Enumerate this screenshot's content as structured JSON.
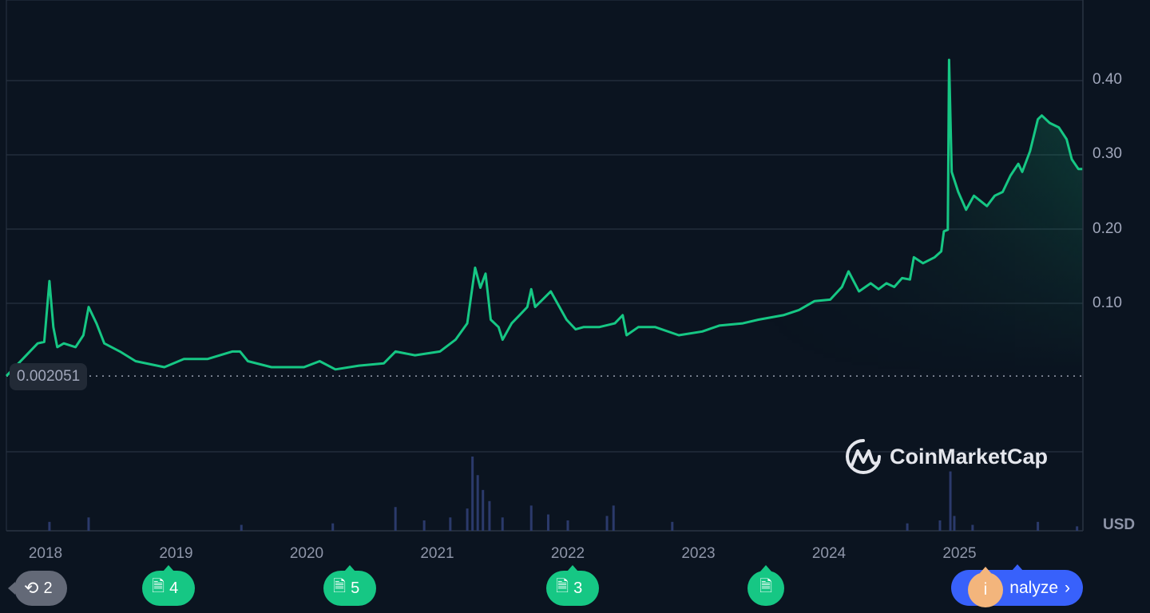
{
  "chart_data": {
    "type": "area",
    "x_unit": "year",
    "y_unit": "USD",
    "ylim": [
      0,
      0.45
    ],
    "grid": true,
    "yticks": [
      "0.40",
      "0.30",
      "0.20",
      "0.10"
    ],
    "ytick_values": [
      0.4,
      0.3,
      0.2,
      0.1
    ],
    "xticks": [
      "2018",
      "2019",
      "2020",
      "2021",
      "2022",
      "2023",
      "2024",
      "2025"
    ],
    "xtick_values": [
      2018,
      2019,
      2020,
      2021,
      2022,
      2023,
      2024,
      2025
    ],
    "xlim": [
      2017.7,
      2025.94
    ],
    "currency_label": "USD",
    "baseline_value": 0.002051,
    "baseline_label": "0.002051",
    "line_color": "#16c784",
    "volume_color": "#2b3a6b",
    "series": [
      {
        "points": [
          [
            2017.7,
            0.002
          ],
          [
            2017.94,
            0.046
          ],
          [
            2017.99,
            0.048
          ],
          [
            2018.03,
            0.13
          ],
          [
            2018.06,
            0.068
          ],
          [
            2018.09,
            0.041
          ],
          [
            2018.14,
            0.046
          ],
          [
            2018.23,
            0.041
          ],
          [
            2018.29,
            0.057
          ],
          [
            2018.33,
            0.095
          ],
          [
            2018.39,
            0.073
          ],
          [
            2018.45,
            0.046
          ],
          [
            2018.57,
            0.035
          ],
          [
            2018.69,
            0.022
          ],
          [
            2018.91,
            0.014
          ],
          [
            2019.06,
            0.025
          ],
          [
            2019.24,
            0.025
          ],
          [
            2019.43,
            0.035
          ],
          [
            2019.49,
            0.035
          ],
          [
            2019.55,
            0.022
          ],
          [
            2019.73,
            0.014
          ],
          [
            2019.98,
            0.014
          ],
          [
            2020.1,
            0.022
          ],
          [
            2020.22,
            0.011
          ],
          [
            2020.4,
            0.016
          ],
          [
            2020.59,
            0.019
          ],
          [
            2020.68,
            0.035
          ],
          [
            2020.83,
            0.03
          ],
          [
            2021.02,
            0.035
          ],
          [
            2021.14,
            0.051
          ],
          [
            2021.23,
            0.073
          ],
          [
            2021.29,
            0.148
          ],
          [
            2021.33,
            0.121
          ],
          [
            2021.37,
            0.14
          ],
          [
            2021.41,
            0.078
          ],
          [
            2021.47,
            0.068
          ],
          [
            2021.5,
            0.051
          ],
          [
            2021.57,
            0.073
          ],
          [
            2021.63,
            0.084
          ],
          [
            2021.69,
            0.095
          ],
          [
            2021.72,
            0.119
          ],
          [
            2021.75,
            0.095
          ],
          [
            2021.87,
            0.116
          ],
          [
            2021.99,
            0.078
          ],
          [
            2022.06,
            0.065
          ],
          [
            2022.12,
            0.068
          ],
          [
            2022.24,
            0.068
          ],
          [
            2022.36,
            0.073
          ],
          [
            2022.42,
            0.084
          ],
          [
            2022.45,
            0.057
          ],
          [
            2022.54,
            0.068
          ],
          [
            2022.67,
            0.068
          ],
          [
            2022.85,
            0.057
          ],
          [
            2023.03,
            0.062
          ],
          [
            2023.16,
            0.07
          ],
          [
            2023.34,
            0.073
          ],
          [
            2023.46,
            0.078
          ],
          [
            2023.65,
            0.084
          ],
          [
            2023.77,
            0.091
          ],
          [
            2023.89,
            0.103
          ],
          [
            2024.01,
            0.105
          ],
          [
            2024.1,
            0.122
          ],
          [
            2024.15,
            0.143
          ],
          [
            2024.23,
            0.116
          ],
          [
            2024.32,
            0.127
          ],
          [
            2024.38,
            0.119
          ],
          [
            2024.44,
            0.127
          ],
          [
            2024.5,
            0.122
          ],
          [
            2024.56,
            0.134
          ],
          [
            2024.62,
            0.132
          ],
          [
            2024.65,
            0.162
          ],
          [
            2024.72,
            0.154
          ],
          [
            2024.81,
            0.162
          ],
          [
            2024.86,
            0.17
          ],
          [
            2024.88,
            0.197
          ],
          [
            2024.91,
            0.199
          ],
          [
            2024.92,
            0.428
          ],
          [
            2024.94,
            0.277
          ],
          [
            2024.99,
            0.25
          ],
          [
            2025.05,
            0.226
          ],
          [
            2025.11,
            0.245
          ],
          [
            2025.21,
            0.231
          ],
          [
            2025.27,
            0.245
          ],
          [
            2025.33,
            0.25
          ],
          [
            2025.39,
            0.272
          ],
          [
            2025.45,
            0.288
          ],
          [
            2025.48,
            0.277
          ],
          [
            2025.54,
            0.305
          ],
          [
            2025.6,
            0.348
          ],
          [
            2025.63,
            0.353
          ],
          [
            2025.69,
            0.343
          ],
          [
            2025.76,
            0.337
          ],
          [
            2025.82,
            0.321
          ],
          [
            2025.86,
            0.294
          ],
          [
            2025.91,
            0.281
          ],
          [
            2025.94,
            0.281
          ]
        ]
      }
    ],
    "volume_relative": [
      [
        2018.03,
        12
      ],
      [
        2018.33,
        18
      ],
      [
        2019.5,
        8
      ],
      [
        2020.2,
        10
      ],
      [
        2020.68,
        32
      ],
      [
        2020.9,
        14
      ],
      [
        2021.1,
        18
      ],
      [
        2021.23,
        30
      ],
      [
        2021.27,
        100
      ],
      [
        2021.31,
        75
      ],
      [
        2021.35,
        55
      ],
      [
        2021.4,
        40
      ],
      [
        2021.5,
        18
      ],
      [
        2021.72,
        34
      ],
      [
        2021.85,
        22
      ],
      [
        2022.0,
        14
      ],
      [
        2022.3,
        20
      ],
      [
        2022.35,
        34
      ],
      [
        2022.8,
        12
      ],
      [
        2024.6,
        10
      ],
      [
        2024.85,
        14
      ],
      [
        2024.93,
        80
      ],
      [
        2024.96,
        20
      ],
      [
        2025.1,
        8
      ],
      [
        2025.6,
        12
      ],
      [
        2025.9,
        6
      ]
    ]
  },
  "watermark": "CoinMarketCap",
  "markers": [
    {
      "icon": "history-icon",
      "count": "2"
    },
    {
      "icon": "document-icon",
      "count": "4"
    },
    {
      "icon": "document-icon",
      "count": "5"
    },
    {
      "icon": "document-icon",
      "count": "3"
    },
    {
      "icon": "document-icon",
      "count": ""
    }
  ],
  "analyze_label": "Analyze",
  "analyze_visible_label": "nalyze",
  "info_label": "i"
}
